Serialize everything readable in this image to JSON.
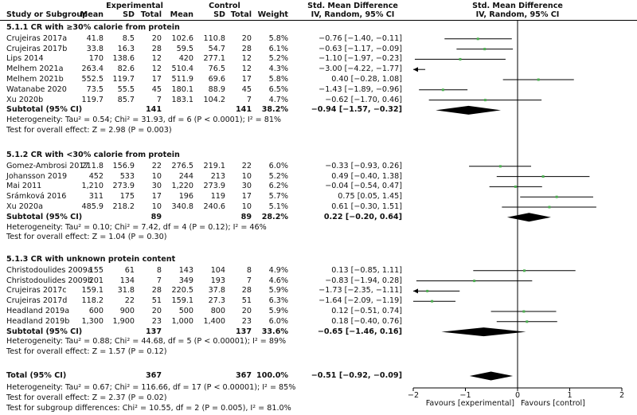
{
  "header": {
    "study_col": "Study or Subgroup",
    "experimental": "Experimental",
    "control": "Control",
    "mean": "Mean",
    "sd": "SD",
    "total": "Total",
    "weight": "Weight",
    "smd_title": "Std. Mean Difference",
    "smd_sub": "IV, Random, 95% CI",
    "plot_title": "Std. Mean Difference",
    "plot_sub": "IV, Random, 95% CI"
  },
  "subgroups": [
    {
      "title": "5.1.1 CR with ≥30% calorie from protein",
      "studies": [
        {
          "name": "Crujeiras 2017a",
          "em": "41.8",
          "esd": "8.5",
          "et": "20",
          "cm": "102.6",
          "csd": "110.8",
          "ct": "20",
          "w": "5.8%",
          "ci": "−0.76 [−1.40, −0.11]",
          "est": -0.76,
          "lo": -1.4,
          "hi": -0.11,
          "arrow_left": false
        },
        {
          "name": "Crujeiras 2017b",
          "em": "33.8",
          "esd": "16.3",
          "et": "28",
          "cm": "59.5",
          "csd": "54.7",
          "ct": "28",
          "w": "6.1%",
          "ci": "−0.63 [−1.17, −0.09]",
          "est": -0.63,
          "lo": -1.17,
          "hi": -0.09,
          "arrow_left": false
        },
        {
          "name": "Lips 2014",
          "em": "170",
          "esd": "138.6",
          "et": "12",
          "cm": "420",
          "csd": "277.1",
          "ct": "12",
          "w": "5.2%",
          "ci": "−1.10 [−1.97, −0.23]",
          "est": -1.1,
          "lo": -1.97,
          "hi": -0.23,
          "arrow_left": false
        },
        {
          "name": "Melhem 2021a",
          "em": "263.4",
          "esd": "82.6",
          "et": "12",
          "cm": "510.4",
          "csd": "76.5",
          "ct": "12",
          "w": "4.3%",
          "ci": "−3.00 [−4.22, −1.77]",
          "est": -3.0,
          "lo": -4.22,
          "hi": -1.77,
          "arrow_left": true
        },
        {
          "name": "Melhem 2021b",
          "em": "552.5",
          "esd": "119.7",
          "et": "17",
          "cm": "511.9",
          "csd": "69.6",
          "ct": "17",
          "w": "5.8%",
          "ci": "0.40 [−0.28, 1.08]",
          "est": 0.4,
          "lo": -0.28,
          "hi": 1.08,
          "arrow_left": false
        },
        {
          "name": "Watanabe 2020",
          "em": "73.5",
          "esd": "55.5",
          "et": "45",
          "cm": "180.1",
          "csd": "88.9",
          "ct": "45",
          "w": "6.5%",
          "ci": "−1.43 [−1.89, −0.96]",
          "est": -1.43,
          "lo": -1.89,
          "hi": -0.96,
          "arrow_left": false
        },
        {
          "name": "Xu 2020b",
          "em": "119.7",
          "esd": "85.7",
          "et": "7",
          "cm": "183.1",
          "csd": "104.2",
          "ct": "7",
          "w": "4.7%",
          "ci": "−0.62 [−1.70, 0.46]",
          "est": -0.62,
          "lo": -1.7,
          "hi": 0.46,
          "arrow_left": false
        }
      ],
      "subtotal": {
        "label": "Subtotal (95% CI)",
        "et": "141",
        "ct": "141",
        "w": "38.2%",
        "ci": "−0.94 [−1.57, −0.32]",
        "est": -0.94,
        "lo": -1.57,
        "hi": -0.32
      },
      "heterogeneity": "Heterogeneity: Tau² = 0.54; Chi² = 31.93, df = 6 (P < 0.0001); I² = 81%",
      "overall": "Test for overall effect: Z = 2.98 (P = 0.003)"
    },
    {
      "title": "5.1.2 CR with <30% calorie from protein",
      "studies": [
        {
          "name": "Gomez-Ambrosi 2017",
          "em": "211.8",
          "esd": "156.9",
          "et": "22",
          "cm": "276.5",
          "csd": "219.1",
          "ct": "22",
          "w": "6.0%",
          "ci": "−0.33 [−0.93, 0.26]",
          "est": -0.33,
          "lo": -0.93,
          "hi": 0.26,
          "arrow_left": false
        },
        {
          "name": "Johansson 2019",
          "em": "452",
          "esd": "533",
          "et": "10",
          "cm": "244",
          "csd": "213",
          "ct": "10",
          "w": "5.2%",
          "ci": "0.49 [−0.40, 1.38]",
          "est": 0.49,
          "lo": -0.4,
          "hi": 1.38,
          "arrow_left": false
        },
        {
          "name": "Mai 2011",
          "em": "1,210",
          "esd": "273.9",
          "et": "30",
          "cm": "1,220",
          "csd": "273.9",
          "ct": "30",
          "w": "6.2%",
          "ci": "−0.04 [−0.54, 0.47]",
          "est": -0.04,
          "lo": -0.54,
          "hi": 0.47,
          "arrow_left": false
        },
        {
          "name": "Srámková 2016",
          "em": "311",
          "esd": "175",
          "et": "17",
          "cm": "196",
          "csd": "119",
          "ct": "17",
          "w": "5.7%",
          "ci": "0.75 [0.05, 1.45]",
          "est": 0.75,
          "lo": 0.05,
          "hi": 1.45,
          "arrow_left": false
        },
        {
          "name": "Xu 2020a",
          "em": "485.9",
          "esd": "218.2",
          "et": "10",
          "cm": "340.8",
          "csd": "240.6",
          "ct": "10",
          "w": "5.1%",
          "ci": "0.61 [−0.30, 1.51]",
          "est": 0.61,
          "lo": -0.3,
          "hi": 1.51,
          "arrow_left": false
        }
      ],
      "subtotal": {
        "label": "Subtotal (95% CI)",
        "et": "89",
        "ct": "89",
        "w": "28.2%",
        "ci": "0.22 [−0.20, 0.64]",
        "est": 0.22,
        "lo": -0.2,
        "hi": 0.64
      },
      "heterogeneity": "Heterogeneity: Tau² = 0.10; Chi² = 7.42, df = 4 (P = 0.12); I² = 46%",
      "overall": "Test for overall effect: Z = 1.04 (P = 0.30)"
    },
    {
      "title": "5.1.3 CR with unknown protein content",
      "studies": [
        {
          "name": "Christodoulides 2009a",
          "em": "155",
          "esd": "61",
          "et": "8",
          "cm": "143",
          "csd": "104",
          "ct": "8",
          "w": "4.9%",
          "ci": "0.13 [−0.85, 1.11]",
          "est": 0.13,
          "lo": -0.85,
          "hi": 1.11,
          "arrow_left": false
        },
        {
          "name": "Christodoulides 2009b",
          "em": "201",
          "esd": "134",
          "et": "7",
          "cm": "349",
          "csd": "193",
          "ct": "7",
          "w": "4.6%",
          "ci": "−0.83 [−1.94, 0.28]",
          "est": -0.83,
          "lo": -1.94,
          "hi": 0.28,
          "arrow_left": false
        },
        {
          "name": "Crujeiras 2017c",
          "em": "159.1",
          "esd": "31.8",
          "et": "28",
          "cm": "220.5",
          "csd": "37.8",
          "ct": "28",
          "w": "5.9%",
          "ci": "−1.73 [−2.35, −1.11]",
          "est": -1.73,
          "lo": -2.35,
          "hi": -1.11,
          "arrow_left": true
        },
        {
          "name": "Crujeiras 2017d",
          "em": "118.2",
          "esd": "22",
          "et": "51",
          "cm": "159.1",
          "csd": "27.3",
          "ct": "51",
          "w": "6.3%",
          "ci": "−1.64 [−2.09, −1.19]",
          "est": -1.64,
          "lo": -2.09,
          "hi": -1.19,
          "arrow_left": false
        },
        {
          "name": "Headland 2019a",
          "em": "600",
          "esd": "900",
          "et": "20",
          "cm": "500",
          "csd": "800",
          "ct": "20",
          "w": "5.9%",
          "ci": "0.12 [−0.51, 0.74]",
          "est": 0.12,
          "lo": -0.51,
          "hi": 0.74,
          "arrow_left": false
        },
        {
          "name": "Headland 2019b",
          "em": "1,300",
          "esd": "1,900",
          "et": "23",
          "cm": "1,000",
          "csd": "1,400",
          "ct": "23",
          "w": "6.0%",
          "ci": "0.18 [−0.40, 0.76]",
          "est": 0.18,
          "lo": -0.4,
          "hi": 0.76,
          "arrow_left": false
        }
      ],
      "subtotal": {
        "label": "Subtotal (95% CI)",
        "et": "137",
        "ct": "137",
        "w": "33.6%",
        "ci": "−0.65 [−1.46, 0.16]",
        "est": -0.65,
        "lo": -1.46,
        "hi": 0.16
      },
      "heterogeneity": "Heterogeneity: Tau² = 0.88; Chi² = 44.68, df = 5 (P < 0.00001); I² = 89%",
      "overall": "Test for overall effect: Z = 1.57 (P = 0.12)"
    }
  ],
  "total": {
    "label": "Total (95% CI)",
    "et": "367",
    "ct": "367",
    "w": "100.0%",
    "ci": "−0.51 [−0.92, −0.09]",
    "est": -0.51,
    "lo": -0.92,
    "hi": -0.09
  },
  "footer": {
    "heterogeneity": "Heterogeneity: Tau² = 0.67; Chi² = 116.66, df = 17 (P < 0.00001); I² = 85%",
    "overall": "Test for overall effect: Z = 2.37 (P = 0.02)",
    "subgroup": "Test for subgroup differences: Chi² = 10.55, df = 2 (P = 0.005), I² = 81.0%"
  },
  "chart_data": {
    "type": "forest",
    "xlim": [
      -2,
      2
    ],
    "ticks": [
      -2,
      -1,
      0,
      1,
      2
    ],
    "tick_labels": [
      "−2",
      "−1",
      "0",
      "1",
      "2"
    ],
    "favours_left": "Favours [experimental]",
    "favours_right": "Favours [control]",
    "colors": {
      "estimate": "#4caf50",
      "diamond": "#000000",
      "line": "#000000"
    }
  }
}
